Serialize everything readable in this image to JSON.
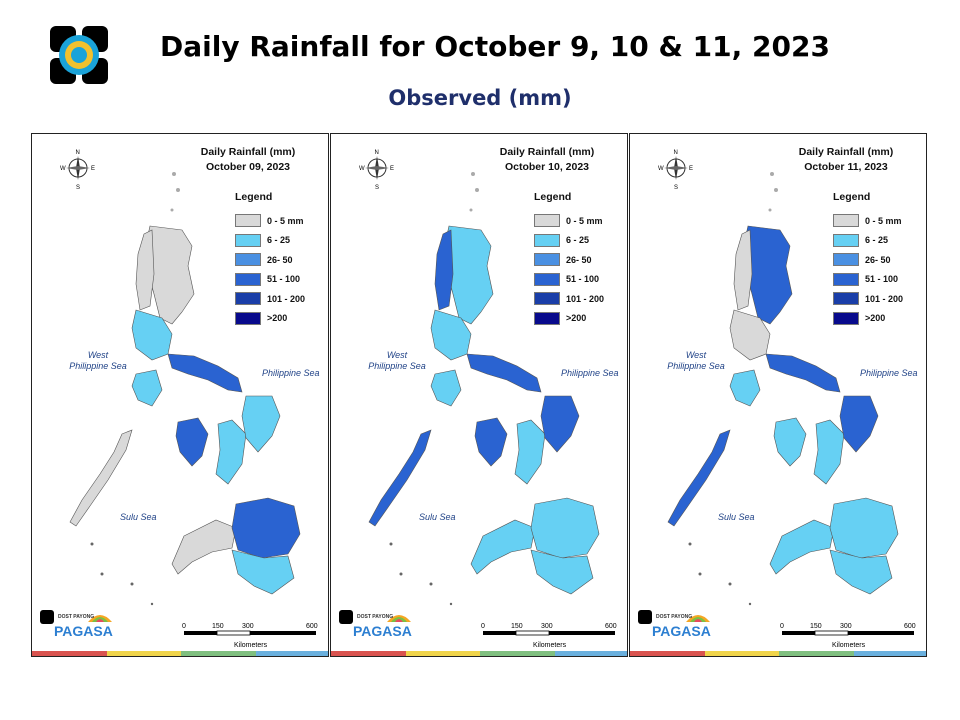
{
  "header": {
    "title": "Daily Rainfall for October 9, 10 & 11, 2023",
    "subtitle": "Observed (mm)",
    "logo_icon": "pagasa-seal-logo"
  },
  "legend": {
    "title": "Legend",
    "classes": [
      {
        "label": "0 - 5 mm",
        "color": "#d9d9d9"
      },
      {
        "label": "6 - 25",
        "color": "#66d0f3"
      },
      {
        "label": "26- 50",
        "color": "#4a90e2"
      },
      {
        "label": "51 - 100",
        "color": "#2a63d1"
      },
      {
        "label": "101 - 200",
        "color": "#1a3ea8"
      },
      {
        "label": ">200",
        "color": "#080a8c"
      }
    ]
  },
  "seas": {
    "west": "West\nPhilippine Sea",
    "east": "Philippine Sea",
    "sulu": "Sulu Sea"
  },
  "scale": {
    "ticks": [
      "0",
      "150",
      "300",
      "600"
    ],
    "unit": "Kilometers"
  },
  "compass_letters": {
    "n": "N",
    "s": "S",
    "e": "E",
    "w": "W"
  },
  "branding": {
    "logo_text": "PAGASA",
    "logo_small": "DOST PAYONG"
  },
  "panels": [
    {
      "heading": "Daily Rainfall (mm)",
      "date": "October 09, 2023",
      "regions": {
        "north_luzon": "#d9d9d9",
        "ilocos": "#d9d9d9",
        "central_luzon": "#66d0f3",
        "bicol": "#2a63d1",
        "mindoro": "#66d0f3",
        "panay": "#2a63d1",
        "negros": "#66d0f3",
        "samar": "#66d0f3",
        "palawan": "#d9d9d9",
        "mindanao_west": "#d9d9d9",
        "mindanao_east": "#2a63d1",
        "mindanao_south": "#66d0f3"
      }
    },
    {
      "heading": "Daily Rainfall (mm)",
      "date": "October 10, 2023",
      "regions": {
        "north_luzon": "#66d0f3",
        "ilocos": "#2a63d1",
        "central_luzon": "#66d0f3",
        "bicol": "#2a63d1",
        "mindoro": "#66d0f3",
        "panay": "#2a63d1",
        "negros": "#66d0f3",
        "samar": "#2a63d1",
        "palawan": "#2a63d1",
        "mindanao_west": "#66d0f3",
        "mindanao_east": "#66d0f3",
        "mindanao_south": "#66d0f3"
      }
    },
    {
      "heading": "Daily Rainfall (mm)",
      "date": "October 11, 2023",
      "regions": {
        "north_luzon": "#2a63d1",
        "ilocos": "#d9d9d9",
        "central_luzon": "#d9d9d9",
        "bicol": "#2a63d1",
        "mindoro": "#66d0f3",
        "panay": "#66d0f3",
        "negros": "#66d0f3",
        "samar": "#2a63d1",
        "palawan": "#2a63d1",
        "mindanao_west": "#66d0f3",
        "mindanao_east": "#66d0f3",
        "mindanao_south": "#66d0f3"
      }
    }
  ],
  "stripe_colors": [
    "#d9534f",
    "#f0d44a",
    "#7fbf7f",
    "#6ab0de"
  ]
}
